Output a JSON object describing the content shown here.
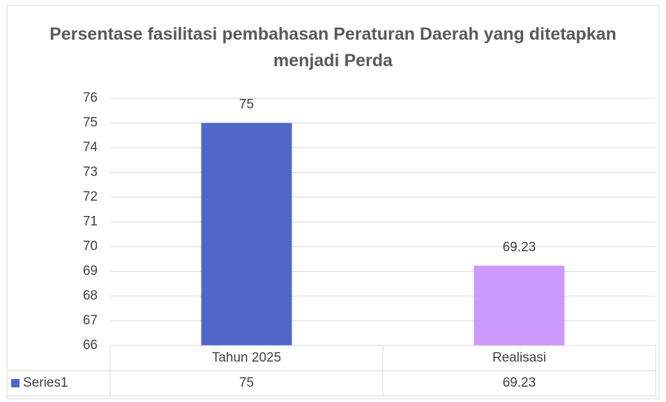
{
  "chart_data": {
    "type": "bar",
    "title": "Persentase fasilitasi pembahasan Peraturan Daerah yang ditetapkan menjadi Perda",
    "categories": [
      "Tahun 2025",
      "Realisasi"
    ],
    "series": [
      {
        "name": "Series1",
        "colors": [
          "#4f67c9",
          "#cc99ff"
        ],
        "legend_color": "#4f67c9",
        "values": [
          75,
          69.23
        ]
      }
    ],
    "ylim": [
      66,
      76
    ],
    "yticks": [
      66,
      67,
      68,
      69,
      70,
      71,
      72,
      73,
      74,
      75,
      76
    ],
    "grid": true,
    "data_table": true
  }
}
